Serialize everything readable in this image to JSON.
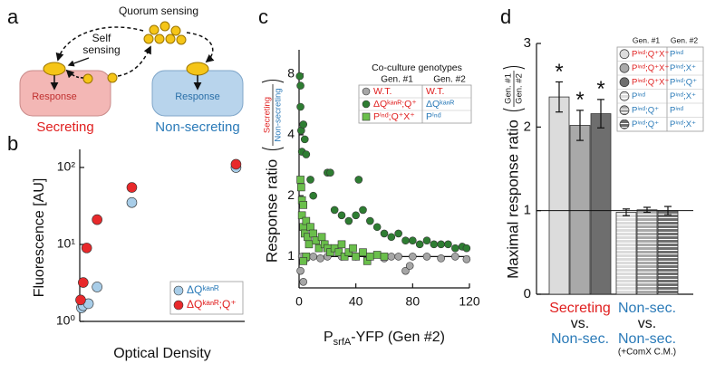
{
  "panel_labels": [
    "a",
    "b",
    "c",
    "d"
  ],
  "diagram": {
    "quorum_sensing": "Quorum sensing",
    "self_sensing": [
      "Self",
      "sensing"
    ],
    "response_left": "Response",
    "response_right": "Response",
    "secreting": "Secreting",
    "non_secreting": "Non-secreting"
  },
  "chart_data": [
    {
      "type": "scatter",
      "x_label": "Optical Density",
      "y_label": "Fluorescence [AU]",
      "log_y": true,
      "xlim": [
        0,
        0.95
      ],
      "ylim": [
        1,
        150
      ],
      "yticks": [
        {
          "value": 1,
          "label": "10⁰"
        },
        {
          "value": 10,
          "label": "10¹"
        },
        {
          "value": 100,
          "label": "10²"
        }
      ],
      "legend": "lower right",
      "series": [
        {
          "name": "ΔQᵏᵃⁿᴿ",
          "color": "#a8cde8",
          "text_color": "#2a7ab8",
          "marker": "circle",
          "x": [
            0.01,
            0.02,
            0.05,
            0.1,
            0.3,
            0.9
          ],
          "values": [
            1.5,
            1.6,
            1.7,
            2.8,
            35,
            100
          ]
        },
        {
          "name": "ΔQᵏᵃⁿᴿ;Q⁺",
          "color": "#e8292b",
          "text_color": "#e02020",
          "marker": "circle",
          "x": [
            0.005,
            0.02,
            0.04,
            0.1,
            0.3,
            0.9
          ],
          "values": [
            1.9,
            3.2,
            9,
            21,
            55,
            110
          ]
        }
      ]
    },
    {
      "type": "scatter",
      "log_y": true,
      "x_label": {
        "main": "P",
        "sub": "srfA",
        "rest": "-YFP (Gen #2)"
      },
      "y_label": "Response ratio",
      "y_label_numerator": "Secreting",
      "y_label_denominator": "Non-secreting",
      "xlim": [
        0,
        120
      ],
      "ylim": [
        0.7,
        10
      ],
      "xticks": [
        0,
        40,
        80,
        120
      ],
      "yticks": [
        1,
        2,
        4,
        8
      ],
      "reference_line": 1,
      "legend_title": "Co-culture genotypes",
      "legend_headers": [
        "Gen. #1",
        "Gen. #2"
      ],
      "series": [
        {
          "name": "W.T.",
          "partner": "W.T.",
          "color": "#a6a6a6",
          "name_color": "#e02020",
          "partner_color": "#e02020",
          "marker": "circle",
          "x": [
            2,
            5,
            10,
            15,
            20,
            30,
            40,
            50,
            60,
            65,
            70,
            75,
            78,
            80,
            90,
            100,
            110,
            118,
            1,
            3
          ],
          "values": [
            1.0,
            0.98,
            1.0,
            0.98,
            1.0,
            1.0,
            1.0,
            1.0,
            0.98,
            1.0,
            1.0,
            0.85,
            0.9,
            1.0,
            1.0,
            0.98,
            1.0,
            0.97,
            0.85,
            0.75
          ]
        },
        {
          "name": "ΔQᵏᵃⁿᴿ;Q⁺",
          "partner": "ΔQᵏᵃⁿᴿ",
          "color": "#2e7d32",
          "name_color": "#e02020",
          "partner_color": "#2a7ab8",
          "marker": "circle",
          "x": [
            0.5,
            1,
            1,
            1.5,
            2,
            3,
            4,
            5,
            8,
            10,
            20,
            22,
            25,
            30,
            35,
            40,
            42,
            45,
            50,
            55,
            60,
            65,
            70,
            75,
            80,
            85,
            90,
            95,
            100,
            105,
            110,
            115,
            118
          ],
          "values": [
            7.8,
            7,
            5.5,
            4.2,
            3.3,
            4.5,
            3.8,
            3.2,
            2.4,
            2.0,
            2.6,
            2.6,
            1.7,
            1.6,
            1.5,
            1.6,
            2.4,
            1.7,
            1.5,
            1.4,
            1.3,
            1.25,
            1.3,
            1.2,
            1.2,
            1.15,
            1.2,
            1.15,
            1.15,
            1.15,
            1.1,
            1.12,
            1.1
          ]
        },
        {
          "name": "Pⁱⁿᵈ;Q⁺X⁺",
          "partner": "Pⁱⁿᵈ",
          "color": "#6abf4b",
          "name_color": "#e02020",
          "partner_color": "#2a7ab8",
          "marker": "square",
          "x": [
            1,
            1.5,
            2,
            2,
            3,
            3,
            4,
            5,
            6,
            7,
            8,
            10,
            12,
            14,
            16,
            18,
            20,
            22,
            25,
            28,
            30,
            32,
            35,
            38,
            40,
            45,
            48,
            50,
            55,
            60,
            5,
            3
          ],
          "values": [
            2.4,
            2.2,
            1.9,
            1.6,
            1.8,
            1.4,
            1.3,
            1.5,
            1.25,
            1.15,
            1.4,
            1.3,
            1.2,
            1.1,
            1.25,
            1.15,
            1.1,
            1.05,
            1.1,
            1.05,
            1.15,
            1.0,
            1.05,
            1.1,
            1.0,
            1.05,
            0.95,
            1.0,
            1.02,
            1.0,
            1.0,
            0.95
          ]
        }
      ]
    },
    {
      "type": "bar",
      "y_label": "Maximal response ratio",
      "y_label_numerator": "Gen. #1",
      "y_label_denominator": "Gen. #2",
      "ylim": [
        0,
        3
      ],
      "yticks": [
        0,
        1,
        2,
        3
      ],
      "reference_line": 1,
      "values": [
        2.36,
        2.02,
        2.16,
        0.98,
        1.01,
        1.0
      ],
      "errors": [
        0.18,
        0.18,
        0.17,
        0.04,
        0.03,
        0.05
      ],
      "colors": [
        "#dcdcdc",
        "#a9a9a9",
        "#6e6e6e",
        "#dcdcdc",
        "#a9a9a9",
        "#6e6e6e"
      ],
      "hatch": [
        false,
        false,
        false,
        true,
        true,
        true
      ],
      "annotations": [
        "*",
        "*",
        "*",
        null,
        null,
        null
      ],
      "legend_headers": [
        "Gen. #1",
        "Gen. #2"
      ],
      "gen1": [
        "Pⁱⁿᵈ;Q⁺X⁺",
        "Pⁱⁿᵈ;Q⁺X⁺",
        "Pⁱⁿᵈ;Q⁺X⁺",
        "Pⁱⁿᵈ",
        "Pⁱⁿᵈ;Q⁺",
        "Pⁱⁿᵈ;Q⁺"
      ],
      "gen2": [
        "Pⁱⁿᵈ",
        "Pⁱⁿᵈ;X⁺",
        "Pⁱⁿᵈ;Q⁺",
        "Pⁱⁿᵈ;X⁺",
        "Pⁱⁿᵈ",
        "Pⁱⁿᵈ;X⁺"
      ],
      "gen1_colors": [
        "#e02020",
        "#e02020",
        "#e02020",
        "#2a7ab8",
        "#2a7ab8",
        "#2a7ab8"
      ],
      "gen2_color": "#2a7ab8",
      "group_labels": [
        [
          "Secreting",
          "vs.",
          "Non-sec."
        ],
        [
          "Non-sec.",
          "vs.",
          "Non-sec.",
          "(+ComX C.M.)"
        ]
      ],
      "group_label_colors": [
        [
          "#e02020",
          "#111111",
          "#2a7ab8"
        ],
        [
          "#2a7ab8",
          "#111111",
          "#2a7ab8",
          "#111111"
        ]
      ]
    }
  ]
}
